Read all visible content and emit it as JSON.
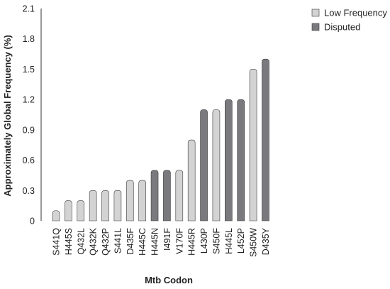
{
  "chart_data": {
    "type": "bar",
    "xlabel": "Mtb Codon",
    "ylabel": "Approximately Global Frequency (%)",
    "ylim": [
      0,
      2.1
    ],
    "yticks": [
      "0",
      "0.3",
      "0.6",
      "0.9",
      "1.2",
      "1.5",
      "1.8",
      "2.1"
    ],
    "grid": false,
    "legend_position": "top-right",
    "legend": [
      {
        "name": "Low Frequency",
        "color": "#d3d3d3"
      },
      {
        "name": "Disputed",
        "color": "#7a7a7e"
      }
    ],
    "categories": [
      "S441Q",
      "H445S",
      "Q432L",
      "Q432K",
      "Q432P",
      "S441L",
      "D435F",
      "H445C",
      "H445N",
      "I491F",
      "V170F",
      "H445R",
      "L430P",
      "S450F",
      "H445L",
      "L452P",
      "S450W",
      "D435Y"
    ],
    "values": [
      0.1,
      0.2,
      0.2,
      0.3,
      0.3,
      0.3,
      0.4,
      0.4,
      0.5,
      0.5,
      0.5,
      0.8,
      1.1,
      1.1,
      1.2,
      1.2,
      1.5,
      1.6
    ],
    "groups": [
      "Low Frequency",
      "Low Frequency",
      "Low Frequency",
      "Low Frequency",
      "Low Frequency",
      "Low Frequency",
      "Low Frequency",
      "Low Frequency",
      "Disputed",
      "Disputed",
      "Low Frequency",
      "Low Frequency",
      "Disputed",
      "Low Frequency",
      "Disputed",
      "Disputed",
      "Low Frequency",
      "Disputed"
    ]
  }
}
